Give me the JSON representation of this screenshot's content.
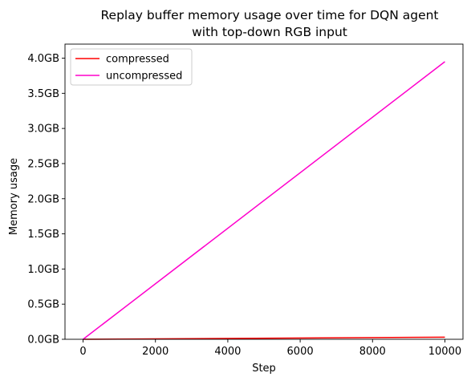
{
  "chart_data": {
    "type": "line",
    "title": [
      "Replay buffer memory usage over time for DQN agent",
      "with top-down RGB input"
    ],
    "xlabel": "Step",
    "ylabel": "Memory usage",
    "xlim": [
      -500,
      10500
    ],
    "ylim": [
      0,
      4.2
    ],
    "xticks": [
      0,
      2000,
      4000,
      6000,
      8000,
      10000
    ],
    "xtick_labels": [
      "0",
      "2000",
      "4000",
      "6000",
      "8000",
      "10000"
    ],
    "yticks": [
      0,
      0.5,
      1,
      1.5,
      2,
      2.5,
      3,
      3.5,
      4
    ],
    "ytick_labels": [
      "0.0GB",
      "0.5GB",
      "1.0GB",
      "1.5GB",
      "2.0GB",
      "2.5GB",
      "3.0GB",
      "3.5GB",
      "4.0GB"
    ],
    "y_unit": "GB",
    "grid": false,
    "legend_position": "top-left",
    "series": [
      {
        "name": "compressed",
        "color": "#ff0000",
        "x": [
          0,
          10000
        ],
        "y": [
          0,
          0.03
        ]
      },
      {
        "name": "uncompressed",
        "color": "#ff00cc",
        "x": [
          0,
          10000
        ],
        "y": [
          0,
          3.95
        ]
      }
    ]
  }
}
